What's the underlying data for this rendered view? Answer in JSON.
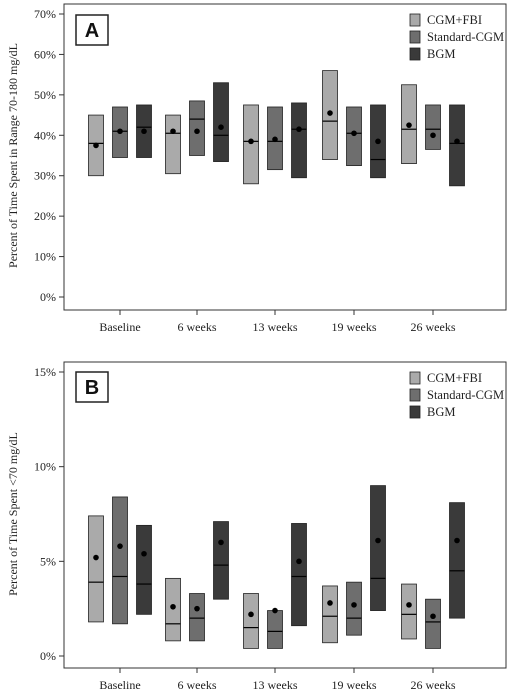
{
  "chart_data": [
    {
      "type": "box",
      "panel_label": "A",
      "ylabel": "Percent of Time Spent in Range 70-180 mg/dL",
      "ylim": [
        0,
        70
      ],
      "yticks": [
        "0%",
        "10%",
        "20%",
        "30%",
        "40%",
        "50%",
        "60%",
        "70%"
      ],
      "ytick_values": [
        0,
        10,
        20,
        30,
        40,
        50,
        60,
        70
      ],
      "categories": [
        "Baseline",
        "6 weeks",
        "13 weeks",
        "19 weeks",
        "26 weeks"
      ],
      "legend_position": "top-right",
      "series": [
        {
          "name": "CGM+FBI",
          "color": "#aaaaaa",
          "q1": [
            30,
            30.5,
            28,
            34,
            33
          ],
          "q3": [
            45,
            45,
            47.5,
            56,
            52.5
          ],
          "median": [
            38,
            40.5,
            38.5,
            43.5,
            41.5
          ],
          "mean": [
            37.5,
            41,
            38.5,
            45.5,
            42.5
          ]
        },
        {
          "name": "Standard-CGM",
          "color": "#6e6e6e",
          "q1": [
            34.5,
            35,
            31.5,
            32.5,
            36.5
          ],
          "q3": [
            47,
            48.5,
            47,
            47,
            47.5
          ],
          "median": [
            41,
            44,
            38.5,
            40.5,
            41.5
          ],
          "mean": [
            41,
            41,
            39,
            40.5,
            40
          ]
        },
        {
          "name": "BGM",
          "color": "#3a3a3a",
          "q1": [
            34.5,
            33.5,
            29.5,
            29.5,
            27.5
          ],
          "q3": [
            47.5,
            53,
            48,
            47.5,
            47.5
          ],
          "median": [
            42,
            40,
            41.5,
            34,
            38
          ],
          "mean": [
            41,
            42,
            41.5,
            38.5,
            38.5
          ]
        }
      ]
    },
    {
      "type": "box",
      "panel_label": "B",
      "ylabel": "Percent of Time Spent <70 mg/dL",
      "ylim": [
        0,
        15
      ],
      "yticks": [
        "0%",
        "5%",
        "10%",
        "15%"
      ],
      "ytick_values": [
        0,
        5,
        10,
        15
      ],
      "categories": [
        "Baseline",
        "6 weeks",
        "13 weeks",
        "19 weeks",
        "26 weeks"
      ],
      "legend_position": "top-right",
      "series": [
        {
          "name": "CGM+FBI",
          "color": "#aaaaaa",
          "q1": [
            1.8,
            0.8,
            0.4,
            0.7,
            0.9
          ],
          "q3": [
            7.4,
            4.1,
            3.3,
            3.7,
            3.8
          ],
          "median": [
            3.9,
            1.7,
            1.5,
            2.1,
            2.2
          ],
          "mean": [
            5.2,
            2.6,
            2.2,
            2.8,
            2.7
          ]
        },
        {
          "name": "Standard-CGM",
          "color": "#6e6e6e",
          "q1": [
            1.7,
            0.8,
            0.4,
            1.1,
            0.4
          ],
          "q3": [
            8.4,
            3.3,
            2.4,
            3.9,
            3.0
          ],
          "median": [
            4.2,
            2.0,
            1.3,
            2.0,
            1.8
          ],
          "mean": [
            5.8,
            2.5,
            2.4,
            2.7,
            2.1
          ]
        },
        {
          "name": "BGM",
          "color": "#3a3a3a",
          "q1": [
            2.2,
            3.0,
            1.6,
            2.4,
            2.0
          ],
          "q3": [
            6.9,
            7.1,
            7.0,
            9.0,
            8.1
          ],
          "median": [
            3.8,
            4.8,
            4.2,
            4.1,
            4.5
          ],
          "mean": [
            5.4,
            6.0,
            5.0,
            6.1,
            6.1
          ]
        }
      ]
    }
  ]
}
